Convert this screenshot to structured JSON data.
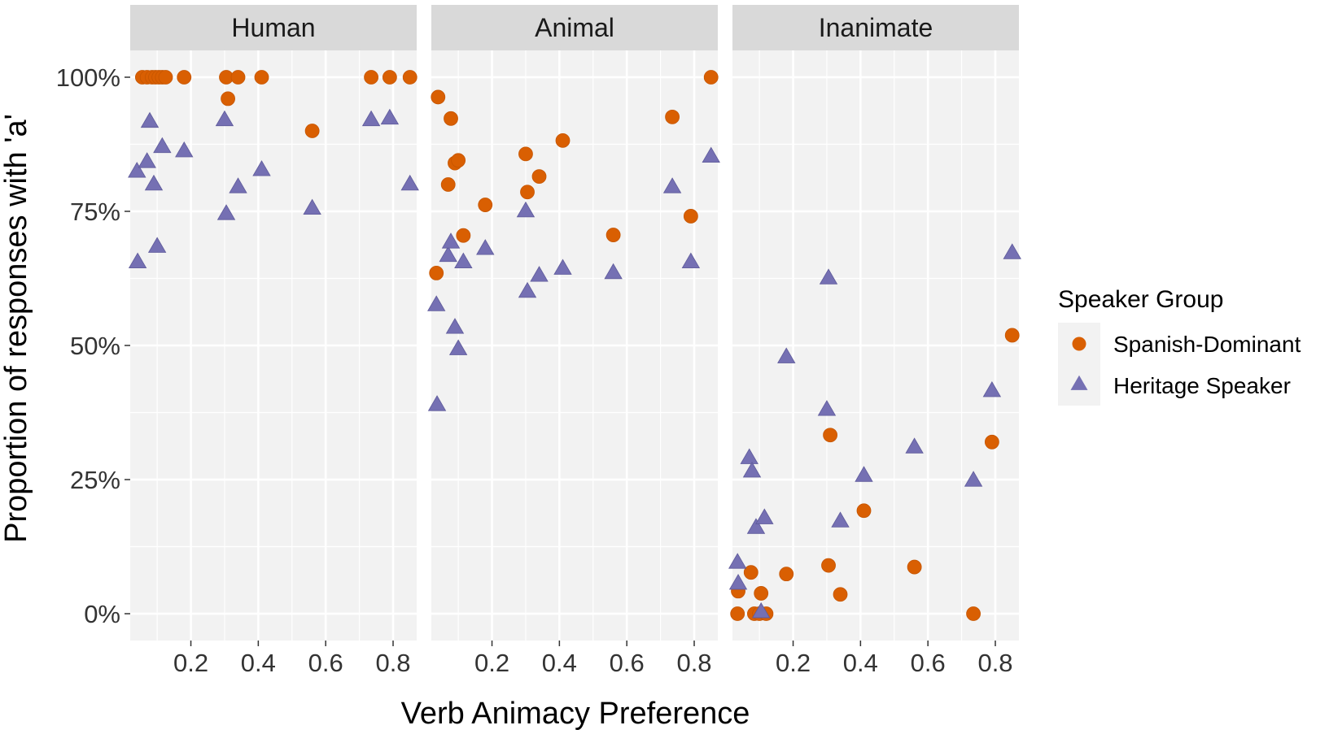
{
  "chart_data": {
    "type": "scatter",
    "facets": [
      "Human",
      "Animal",
      "Inanimate"
    ],
    "xlabel": "Verb Animacy Preference",
    "ylabel": "Proportion of responses with 'a'",
    "x_ticks": [
      0.2,
      0.4,
      0.6,
      0.8
    ],
    "y_ticks": [
      0,
      0.25,
      0.5,
      0.75,
      1.0
    ],
    "y_tick_labels": [
      "0%",
      "25%",
      "50%",
      "75%",
      "100%"
    ],
    "xlim": [
      0.02,
      0.87
    ],
    "ylim": [
      -0.05,
      1.05
    ],
    "grid": true,
    "legend": {
      "title": "Speaker Group",
      "placement": "right",
      "entries": [
        "Spanish-Dominant",
        "Heritage Speaker"
      ]
    },
    "colors": {
      "Spanish-Dominant": "#d95f02",
      "Heritage Speaker": "#7570b3",
      "panel_bg": "#f2f2f2",
      "strip_bg": "#d9d9d9",
      "grid": "#ffffff"
    },
    "series": [
      {
        "name": "Spanish-Dominant",
        "shape": "circle",
        "points": [
          {
            "facet": "Human",
            "x": 0.056,
            "y": 1.0
          },
          {
            "facet": "Human",
            "x": 0.07,
            "y": 1.0
          },
          {
            "facet": "Human",
            "x": 0.085,
            "y": 1.0
          },
          {
            "facet": "Human",
            "x": 0.095,
            "y": 1.0
          },
          {
            "facet": "Human",
            "x": 0.105,
            "y": 1.0
          },
          {
            "facet": "Human",
            "x": 0.115,
            "y": 1.0
          },
          {
            "facet": "Human",
            "x": 0.125,
            "y": 1.0
          },
          {
            "facet": "Human",
            "x": 0.18,
            "y": 1.0
          },
          {
            "facet": "Human",
            "x": 0.305,
            "y": 1.0
          },
          {
            "facet": "Human",
            "x": 0.31,
            "y": 0.96
          },
          {
            "facet": "Human",
            "x": 0.34,
            "y": 1.0
          },
          {
            "facet": "Human",
            "x": 0.41,
            "y": 1.0
          },
          {
            "facet": "Human",
            "x": 0.56,
            "y": 0.9
          },
          {
            "facet": "Human",
            "x": 0.735,
            "y": 1.0
          },
          {
            "facet": "Human",
            "x": 0.79,
            "y": 1.0
          },
          {
            "facet": "Human",
            "x": 0.85,
            "y": 1.0
          },
          {
            "facet": "Animal",
            "x": 0.035,
            "y": 0.635
          },
          {
            "facet": "Animal",
            "x": 0.04,
            "y": 0.963
          },
          {
            "facet": "Animal",
            "x": 0.07,
            "y": 0.8
          },
          {
            "facet": "Animal",
            "x": 0.078,
            "y": 0.923
          },
          {
            "facet": "Animal",
            "x": 0.09,
            "y": 0.84
          },
          {
            "facet": "Animal",
            "x": 0.1,
            "y": 0.845
          },
          {
            "facet": "Animal",
            "x": 0.115,
            "y": 0.705
          },
          {
            "facet": "Animal",
            "x": 0.18,
            "y": 0.762
          },
          {
            "facet": "Animal",
            "x": 0.3,
            "y": 0.857
          },
          {
            "facet": "Animal",
            "x": 0.305,
            "y": 0.786
          },
          {
            "facet": "Animal",
            "x": 0.34,
            "y": 0.815
          },
          {
            "facet": "Animal",
            "x": 0.41,
            "y": 0.882
          },
          {
            "facet": "Animal",
            "x": 0.56,
            "y": 0.706
          },
          {
            "facet": "Animal",
            "x": 0.735,
            "y": 0.926
          },
          {
            "facet": "Animal",
            "x": 0.79,
            "y": 0.741
          },
          {
            "facet": "Animal",
            "x": 0.85,
            "y": 1.0
          },
          {
            "facet": "Inanimate",
            "x": 0.035,
            "y": 0.0
          },
          {
            "facet": "Inanimate",
            "x": 0.037,
            "y": 0.042
          },
          {
            "facet": "Inanimate",
            "x": 0.075,
            "y": 0.077
          },
          {
            "facet": "Inanimate",
            "x": 0.085,
            "y": 0.0
          },
          {
            "facet": "Inanimate",
            "x": 0.1,
            "y": 0.0
          },
          {
            "facet": "Inanimate",
            "x": 0.105,
            "y": 0.038
          },
          {
            "facet": "Inanimate",
            "x": 0.12,
            "y": 0.0
          },
          {
            "facet": "Inanimate",
            "x": 0.18,
            "y": 0.074
          },
          {
            "facet": "Inanimate",
            "x": 0.305,
            "y": 0.09
          },
          {
            "facet": "Inanimate",
            "x": 0.31,
            "y": 0.333
          },
          {
            "facet": "Inanimate",
            "x": 0.34,
            "y": 0.036
          },
          {
            "facet": "Inanimate",
            "x": 0.41,
            "y": 0.192
          },
          {
            "facet": "Inanimate",
            "x": 0.56,
            "y": 0.087
          },
          {
            "facet": "Inanimate",
            "x": 0.735,
            "y": 0.0
          },
          {
            "facet": "Inanimate",
            "x": 0.79,
            "y": 0.32
          },
          {
            "facet": "Inanimate",
            "x": 0.85,
            "y": 0.519
          }
        ]
      },
      {
        "name": "Heritage Speaker",
        "shape": "triangle",
        "points": [
          {
            "facet": "Human",
            "x": 0.04,
            "y": 0.824
          },
          {
            "facet": "Human",
            "x": 0.042,
            "y": 0.655
          },
          {
            "facet": "Human",
            "x": 0.07,
            "y": 0.842
          },
          {
            "facet": "Human",
            "x": 0.078,
            "y": 0.917
          },
          {
            "facet": "Human",
            "x": 0.09,
            "y": 0.8
          },
          {
            "facet": "Human",
            "x": 0.1,
            "y": 0.684
          },
          {
            "facet": "Human",
            "x": 0.115,
            "y": 0.87
          },
          {
            "facet": "Human",
            "x": 0.18,
            "y": 0.862
          },
          {
            "facet": "Human",
            "x": 0.3,
            "y": 0.92
          },
          {
            "facet": "Human",
            "x": 0.305,
            "y": 0.745
          },
          {
            "facet": "Human",
            "x": 0.34,
            "y": 0.795
          },
          {
            "facet": "Human",
            "x": 0.41,
            "y": 0.827
          },
          {
            "facet": "Human",
            "x": 0.56,
            "y": 0.755
          },
          {
            "facet": "Human",
            "x": 0.735,
            "y": 0.92
          },
          {
            "facet": "Human",
            "x": 0.79,
            "y": 0.923
          },
          {
            "facet": "Human",
            "x": 0.85,
            "y": 0.8
          },
          {
            "facet": "Animal",
            "x": 0.035,
            "y": 0.575
          },
          {
            "facet": "Animal",
            "x": 0.037,
            "y": 0.389
          },
          {
            "facet": "Animal",
            "x": 0.07,
            "y": 0.667
          },
          {
            "facet": "Animal",
            "x": 0.078,
            "y": 0.692
          },
          {
            "facet": "Animal",
            "x": 0.09,
            "y": 0.533
          },
          {
            "facet": "Animal",
            "x": 0.1,
            "y": 0.493
          },
          {
            "facet": "Animal",
            "x": 0.115,
            "y": 0.655
          },
          {
            "facet": "Animal",
            "x": 0.18,
            "y": 0.68
          },
          {
            "facet": "Animal",
            "x": 0.3,
            "y": 0.75
          },
          {
            "facet": "Animal",
            "x": 0.305,
            "y": 0.6
          },
          {
            "facet": "Animal",
            "x": 0.34,
            "y": 0.63
          },
          {
            "facet": "Animal",
            "x": 0.41,
            "y": 0.643
          },
          {
            "facet": "Animal",
            "x": 0.56,
            "y": 0.635
          },
          {
            "facet": "Animal",
            "x": 0.735,
            "y": 0.795
          },
          {
            "facet": "Animal",
            "x": 0.79,
            "y": 0.655
          },
          {
            "facet": "Animal",
            "x": 0.85,
            "y": 0.852
          },
          {
            "facet": "Inanimate",
            "x": 0.035,
            "y": 0.095
          },
          {
            "facet": "Inanimate",
            "x": 0.037,
            "y": 0.056
          },
          {
            "facet": "Inanimate",
            "x": 0.07,
            "y": 0.29
          },
          {
            "facet": "Inanimate",
            "x": 0.078,
            "y": 0.265
          },
          {
            "facet": "Inanimate",
            "x": 0.09,
            "y": 0.16
          },
          {
            "facet": "Inanimate",
            "x": 0.105,
            "y": 0.003
          },
          {
            "facet": "Inanimate",
            "x": 0.115,
            "y": 0.178
          },
          {
            "facet": "Inanimate",
            "x": 0.18,
            "y": 0.478
          },
          {
            "facet": "Inanimate",
            "x": 0.3,
            "y": 0.38
          },
          {
            "facet": "Inanimate",
            "x": 0.305,
            "y": 0.625
          },
          {
            "facet": "Inanimate",
            "x": 0.34,
            "y": 0.172
          },
          {
            "facet": "Inanimate",
            "x": 0.41,
            "y": 0.257
          },
          {
            "facet": "Inanimate",
            "x": 0.56,
            "y": 0.31
          },
          {
            "facet": "Inanimate",
            "x": 0.735,
            "y": 0.248
          },
          {
            "facet": "Inanimate",
            "x": 0.79,
            "y": 0.415
          },
          {
            "facet": "Inanimate",
            "x": 0.85,
            "y": 0.672
          }
        ]
      }
    ]
  }
}
